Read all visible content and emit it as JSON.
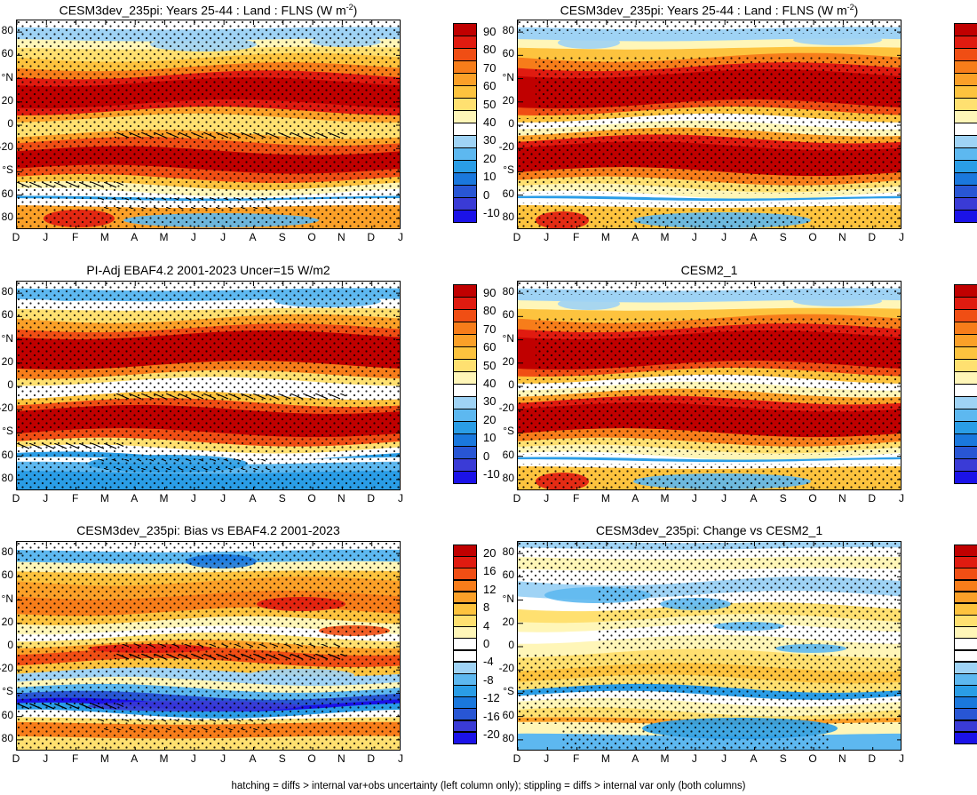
{
  "panels": [
    {
      "title": "CESM3dev_235pi: Years 25-44 : Land : FLNS (W m",
      "title_sup": "-2",
      "title_close": ")",
      "kind": "abs",
      "hatch": true
    },
    {
      "title": "CESM3dev_235pi: Years 25-44 : Land : FLNS (W m",
      "title_sup": "-2",
      "title_close": ")",
      "kind": "abs2",
      "hatch": false
    },
    {
      "title": "PI-Adj EBAF4.2 2001-2023 Uncer=15 W/m2",
      "title_sup": "",
      "title_close": "",
      "kind": "obs",
      "hatch": true
    },
    {
      "title": "CESM2_1",
      "title_sup": "",
      "title_close": "",
      "kind": "abs2",
      "hatch": false
    },
    {
      "title": "CESM3dev_235pi: Bias vs EBAF4.2 2001-2023",
      "title_sup": "",
      "title_close": "",
      "kind": "bias",
      "hatch": true
    },
    {
      "title": "CESM3dev_235pi: Change vs CESM2_1",
      "title_sup": "",
      "title_close": "",
      "kind": "change",
      "hatch": false
    }
  ],
  "chart_data": {
    "type": "heatmap",
    "x": [
      "D",
      "J",
      "F",
      "M",
      "A",
      "M",
      "J",
      "J",
      "A",
      "S",
      "O",
      "N",
      "D",
      "J"
    ],
    "y_ticks": [
      "80",
      "60",
      "°N",
      "20",
      "0",
      "-20",
      "°S",
      "60",
      "80"
    ],
    "y_range": [
      90,
      -90
    ],
    "abs_colorbar": {
      "labels": [
        "90",
        "80",
        "70",
        "60",
        "50",
        "40",
        "30",
        "20",
        "10",
        "0",
        "-10"
      ],
      "colors": [
        "#c00000",
        "#e01b10",
        "#f04e14",
        "#f77d1a",
        "#fba028",
        "#fdc33e",
        "#ffe070",
        "#fff6b8",
        "#ffffff",
        "#9fd3f5",
        "#5db8f0",
        "#2a9de6",
        "#1a78dd",
        "#2856d4",
        "#3a3bd6",
        "#1b12e8"
      ]
    },
    "diff_colorbar": {
      "labels": [
        "20",
        "16",
        "12",
        "8",
        "4",
        "0",
        "-4",
        "-8",
        "-12",
        "-16",
        "-20"
      ],
      "colors": [
        "#c00000",
        "#e01b10",
        "#f04e14",
        "#f77d1a",
        "#fba028",
        "#fdc33e",
        "#ffe070",
        "#fff6b8",
        "#ffffff",
        "#ffffff",
        "#9fd3f5",
        "#5db8f0",
        "#2a9de6",
        "#1a78dd",
        "#2856d4",
        "#3a3bd6",
        "#1b12e8"
      ]
    },
    "plot_types": {
      "abs": "annual cycle of zonal-mean land FLNS, maxima near 30N and 25S, minima over Antarctica",
      "diff": "zonal-mean difference vs month"
    }
  },
  "footnote": "hatching = diffs > internal var+obs uncertainty (left column only); stippling = diffs > internal var only (both columns)"
}
